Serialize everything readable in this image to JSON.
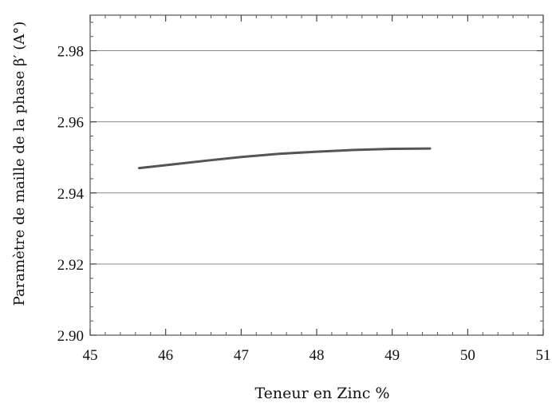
{
  "chart_data": {
    "type": "line",
    "title": "",
    "xlabel": "Teneur en Zinc %",
    "ylabel": "Paramètre de maille de la phase β′ (A°)",
    "xlim": [
      45,
      51
    ],
    "ylim": [
      2.9,
      2.99
    ],
    "x_ticks": [
      45,
      46,
      47,
      48,
      49,
      50,
      51
    ],
    "x_tick_labels": [
      "45",
      "46",
      "47",
      "48",
      "49",
      "50",
      "51"
    ],
    "y_ticks": [
      2.9,
      2.92,
      2.94,
      2.96,
      2.98
    ],
    "y_tick_labels": [
      "2.90",
      "2.92",
      "2.94",
      "2.96",
      "2.98"
    ],
    "grid": "horizontal",
    "legend": "none",
    "series": [
      {
        "color": "#555555",
        "x": [
          45.65,
          46.0,
          46.5,
          47.0,
          47.5,
          48.0,
          48.5,
          49.0,
          49.5
        ],
        "y": [
          2.947,
          2.9478,
          2.949,
          2.9501,
          2.951,
          2.9516,
          2.9521,
          2.9524,
          2.9525
        ]
      }
    ]
  }
}
